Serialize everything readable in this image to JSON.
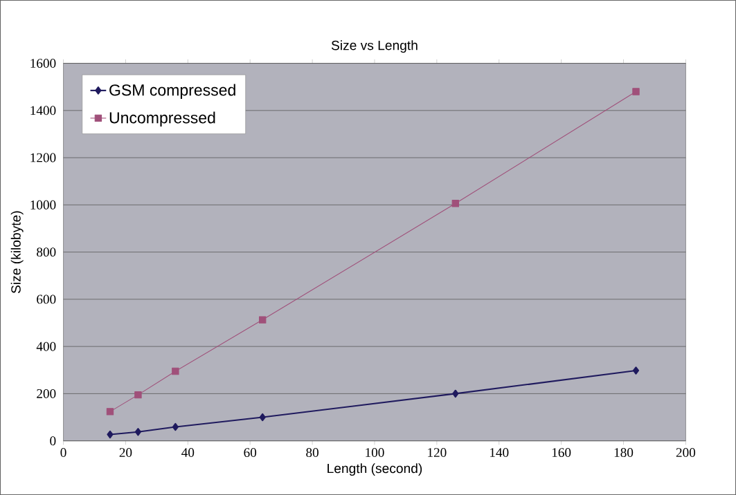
{
  "chart_data": {
    "type": "line",
    "title": "Size vs Length",
    "xlabel": "Length (second)",
    "ylabel": "Size (kilobyte)",
    "xlim": [
      0,
      200
    ],
    "xticks": [
      0,
      20,
      40,
      60,
      80,
      100,
      120,
      140,
      160,
      180,
      200
    ],
    "ylim": [
      0,
      1600
    ],
    "yticks": [
      0,
      200,
      400,
      600,
      800,
      1000,
      1200,
      1400,
      1600
    ],
    "grid": "y",
    "legend": "top left",
    "series": [
      {
        "name": "GSM compressed",
        "color": "#1f1a5e",
        "marker": "diamond",
        "x": [
          15,
          24,
          36,
          64,
          126,
          184
        ],
        "values": [
          27,
          38,
          59,
          100,
          200,
          298
        ]
      },
      {
        "name": "Uncompressed",
        "color": "#a0507a",
        "marker": "square",
        "x": [
          15,
          24,
          36,
          64,
          126,
          184
        ],
        "values": [
          124,
          195,
          295,
          513,
          1006,
          1480
        ]
      }
    ]
  }
}
